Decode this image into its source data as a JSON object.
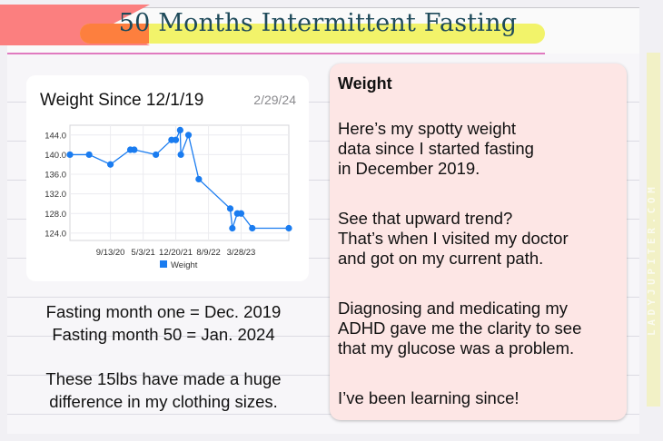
{
  "header": {
    "title": "50 Months Intermittent Fasting",
    "side_watermark": "LADYJUPITER.COM",
    "colors": {
      "ribbon": "#fb7f7f",
      "highlight_yellow": "#f2f36a",
      "highlight_orange": "#fd7f3e",
      "title_text": "#1e4a5a",
      "rule_pink": "#e07ac0"
    }
  },
  "chart_card": {
    "title": "Weight Since 12/1/19",
    "date": "2/29/24"
  },
  "chart_data": {
    "type": "line",
    "title": "Weight Since 12/1/19",
    "subtitle": "2/29/24",
    "xlabel": "",
    "ylabel": "",
    "x_tick_labels": [
      "9/13/20",
      "5/3/21",
      "12/20/21",
      "8/9/22",
      "3/28/23"
    ],
    "y_tick_labels": [
      "124.0",
      "128.0",
      "132.0",
      "136.0",
      "140.0",
      "144.0"
    ],
    "ylim": [
      122.5,
      146
    ],
    "grid": true,
    "legend": [
      "Weight"
    ],
    "legend_position": "bottom",
    "series_color": "#1a7cf0",
    "series": [
      {
        "name": "Weight",
        "x": [
          "12/1/19",
          "4/15/20",
          "9/13/20",
          "2/1/21",
          "3/1/21",
          "8/1/21",
          "11/20/21",
          "12/20/21",
          "1/20/22",
          "1/25/22",
          "3/20/22",
          "6/1/22",
          "1/10/23",
          "1/25/23",
          "3/1/23",
          "3/28/23",
          "6/15/23",
          "2/29/24"
        ],
        "values": [
          140,
          140,
          138,
          141,
          141,
          140,
          143,
          143,
          145,
          140,
          144,
          135,
          129,
          125,
          128,
          128,
          125,
          125
        ]
      }
    ]
  },
  "left_notes": {
    "line1": "Fasting month one = Dec. 2019",
    "line2": "Fasting month 50 = Jan. 2024",
    "line3": "These 15lbs have made a huge",
    "line4": "difference in my clothing sizes."
  },
  "right_card": {
    "heading": "Weight",
    "p1": [
      "Here’s my spotty weight",
      "data since I started fasting",
      "in December 2019."
    ],
    "p2": [
      "See that upward trend?",
      "That’s when I visited my doctor",
      "and got on my current path."
    ],
    "p3": [
      "Diagnosing and medicating my",
      "ADHD gave me the clarity to see",
      "that my glucose was a problem."
    ],
    "p4": [
      "I’ve been learning since!"
    ]
  }
}
